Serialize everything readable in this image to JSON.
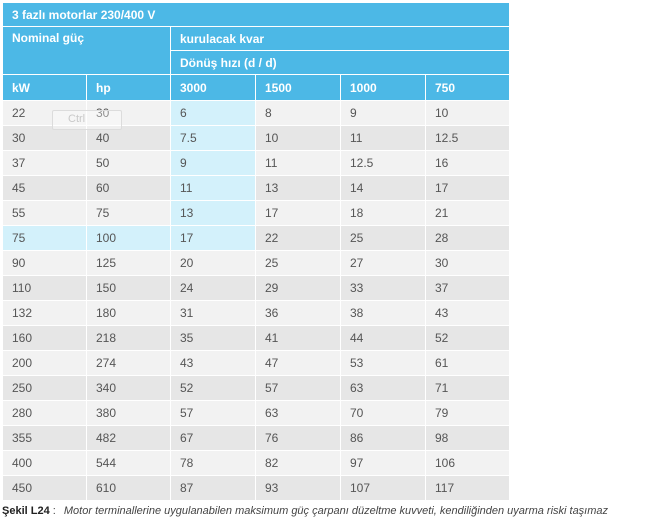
{
  "table": {
    "title": "3 fazlı motorlar 230/400 V",
    "nominal_header": "Nominal güç",
    "kvar_header": "kurulacak kvar",
    "speed_header": "Dönüş hızı (d / d)",
    "columns": [
      "kW",
      "hp",
      "3000",
      "1500",
      "1000",
      "750"
    ],
    "rows": [
      [
        "22",
        "30",
        "6",
        "8",
        "9",
        "10"
      ],
      [
        "30",
        "40",
        "7.5",
        "10",
        "11",
        "12.5"
      ],
      [
        "37",
        "50",
        "9",
        "11",
        "12.5",
        "16"
      ],
      [
        "45",
        "60",
        "11",
        "13",
        "14",
        "17"
      ],
      [
        "55",
        "75",
        "13",
        "17",
        "18",
        "21"
      ],
      [
        "75",
        "100",
        "17",
        "22",
        "25",
        "28"
      ],
      [
        "90",
        "125",
        "20",
        "25",
        "27",
        "30"
      ],
      [
        "110",
        "150",
        "24",
        "29",
        "33",
        "37"
      ],
      [
        "132",
        "180",
        "31",
        "36",
        "38",
        "43"
      ],
      [
        "160",
        "218",
        "35",
        "41",
        "44",
        "52"
      ],
      [
        "200",
        "274",
        "43",
        "47",
        "53",
        "61"
      ],
      [
        "250",
        "340",
        "52",
        "57",
        "63",
        "71"
      ],
      [
        "280",
        "380",
        "57",
        "63",
        "70",
        "79"
      ],
      [
        "355",
        "482",
        "67",
        "76",
        "86",
        "98"
      ],
      [
        "400",
        "544",
        "78",
        "82",
        "97",
        "106"
      ],
      [
        "450",
        "610",
        "87",
        "93",
        "107",
        "117"
      ]
    ]
  },
  "overlay": {
    "ghost_label": "Ctrl"
  },
  "caption": {
    "label": "Şekil L24",
    "separator": ":",
    "text": "Motor terminallerine uygulanabilen maksimum güç çarpanı düzeltme kuvveti, kendiliğinden uyarma riski taşımaz"
  },
  "colors": {
    "header_bg": "#4cb8e6",
    "highlight_bg": "#d3f1fb",
    "row_light": "#f2f2f2",
    "row_dark": "#e6e6e6"
  }
}
